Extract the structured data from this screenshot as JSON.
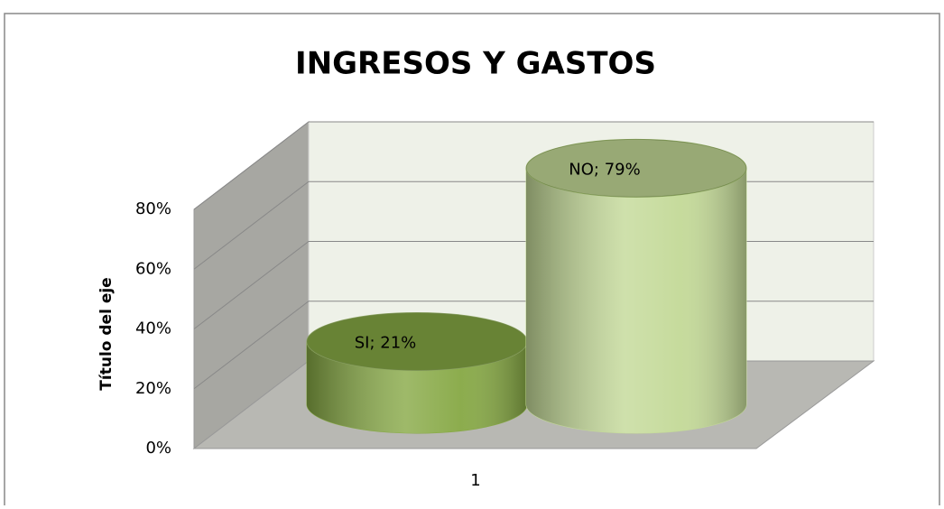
{
  "chart_data": {
    "type": "cylinder3d",
    "title": "INGRESOS Y GASTOS",
    "y_label": "Título del eje",
    "categories": [
      "1"
    ],
    "series": [
      {
        "name": "SI",
        "color": "#86a844",
        "values": [
          21
        ],
        "value_labels": [
          "SI; 21%"
        ]
      },
      {
        "name": "NO",
        "color": "#c3d997",
        "values": [
          79
        ],
        "value_labels": [
          "NO; 79%"
        ]
      }
    ],
    "ylim": [
      0,
      80
    ],
    "yticks": [
      {
        "value": 0,
        "label": "0%"
      },
      {
        "value": 20,
        "label": "20%"
      },
      {
        "value": 40,
        "label": "40%"
      },
      {
        "value": 60,
        "label": "60%"
      },
      {
        "value": 80,
        "label": "80%"
      }
    ],
    "grid": true
  }
}
